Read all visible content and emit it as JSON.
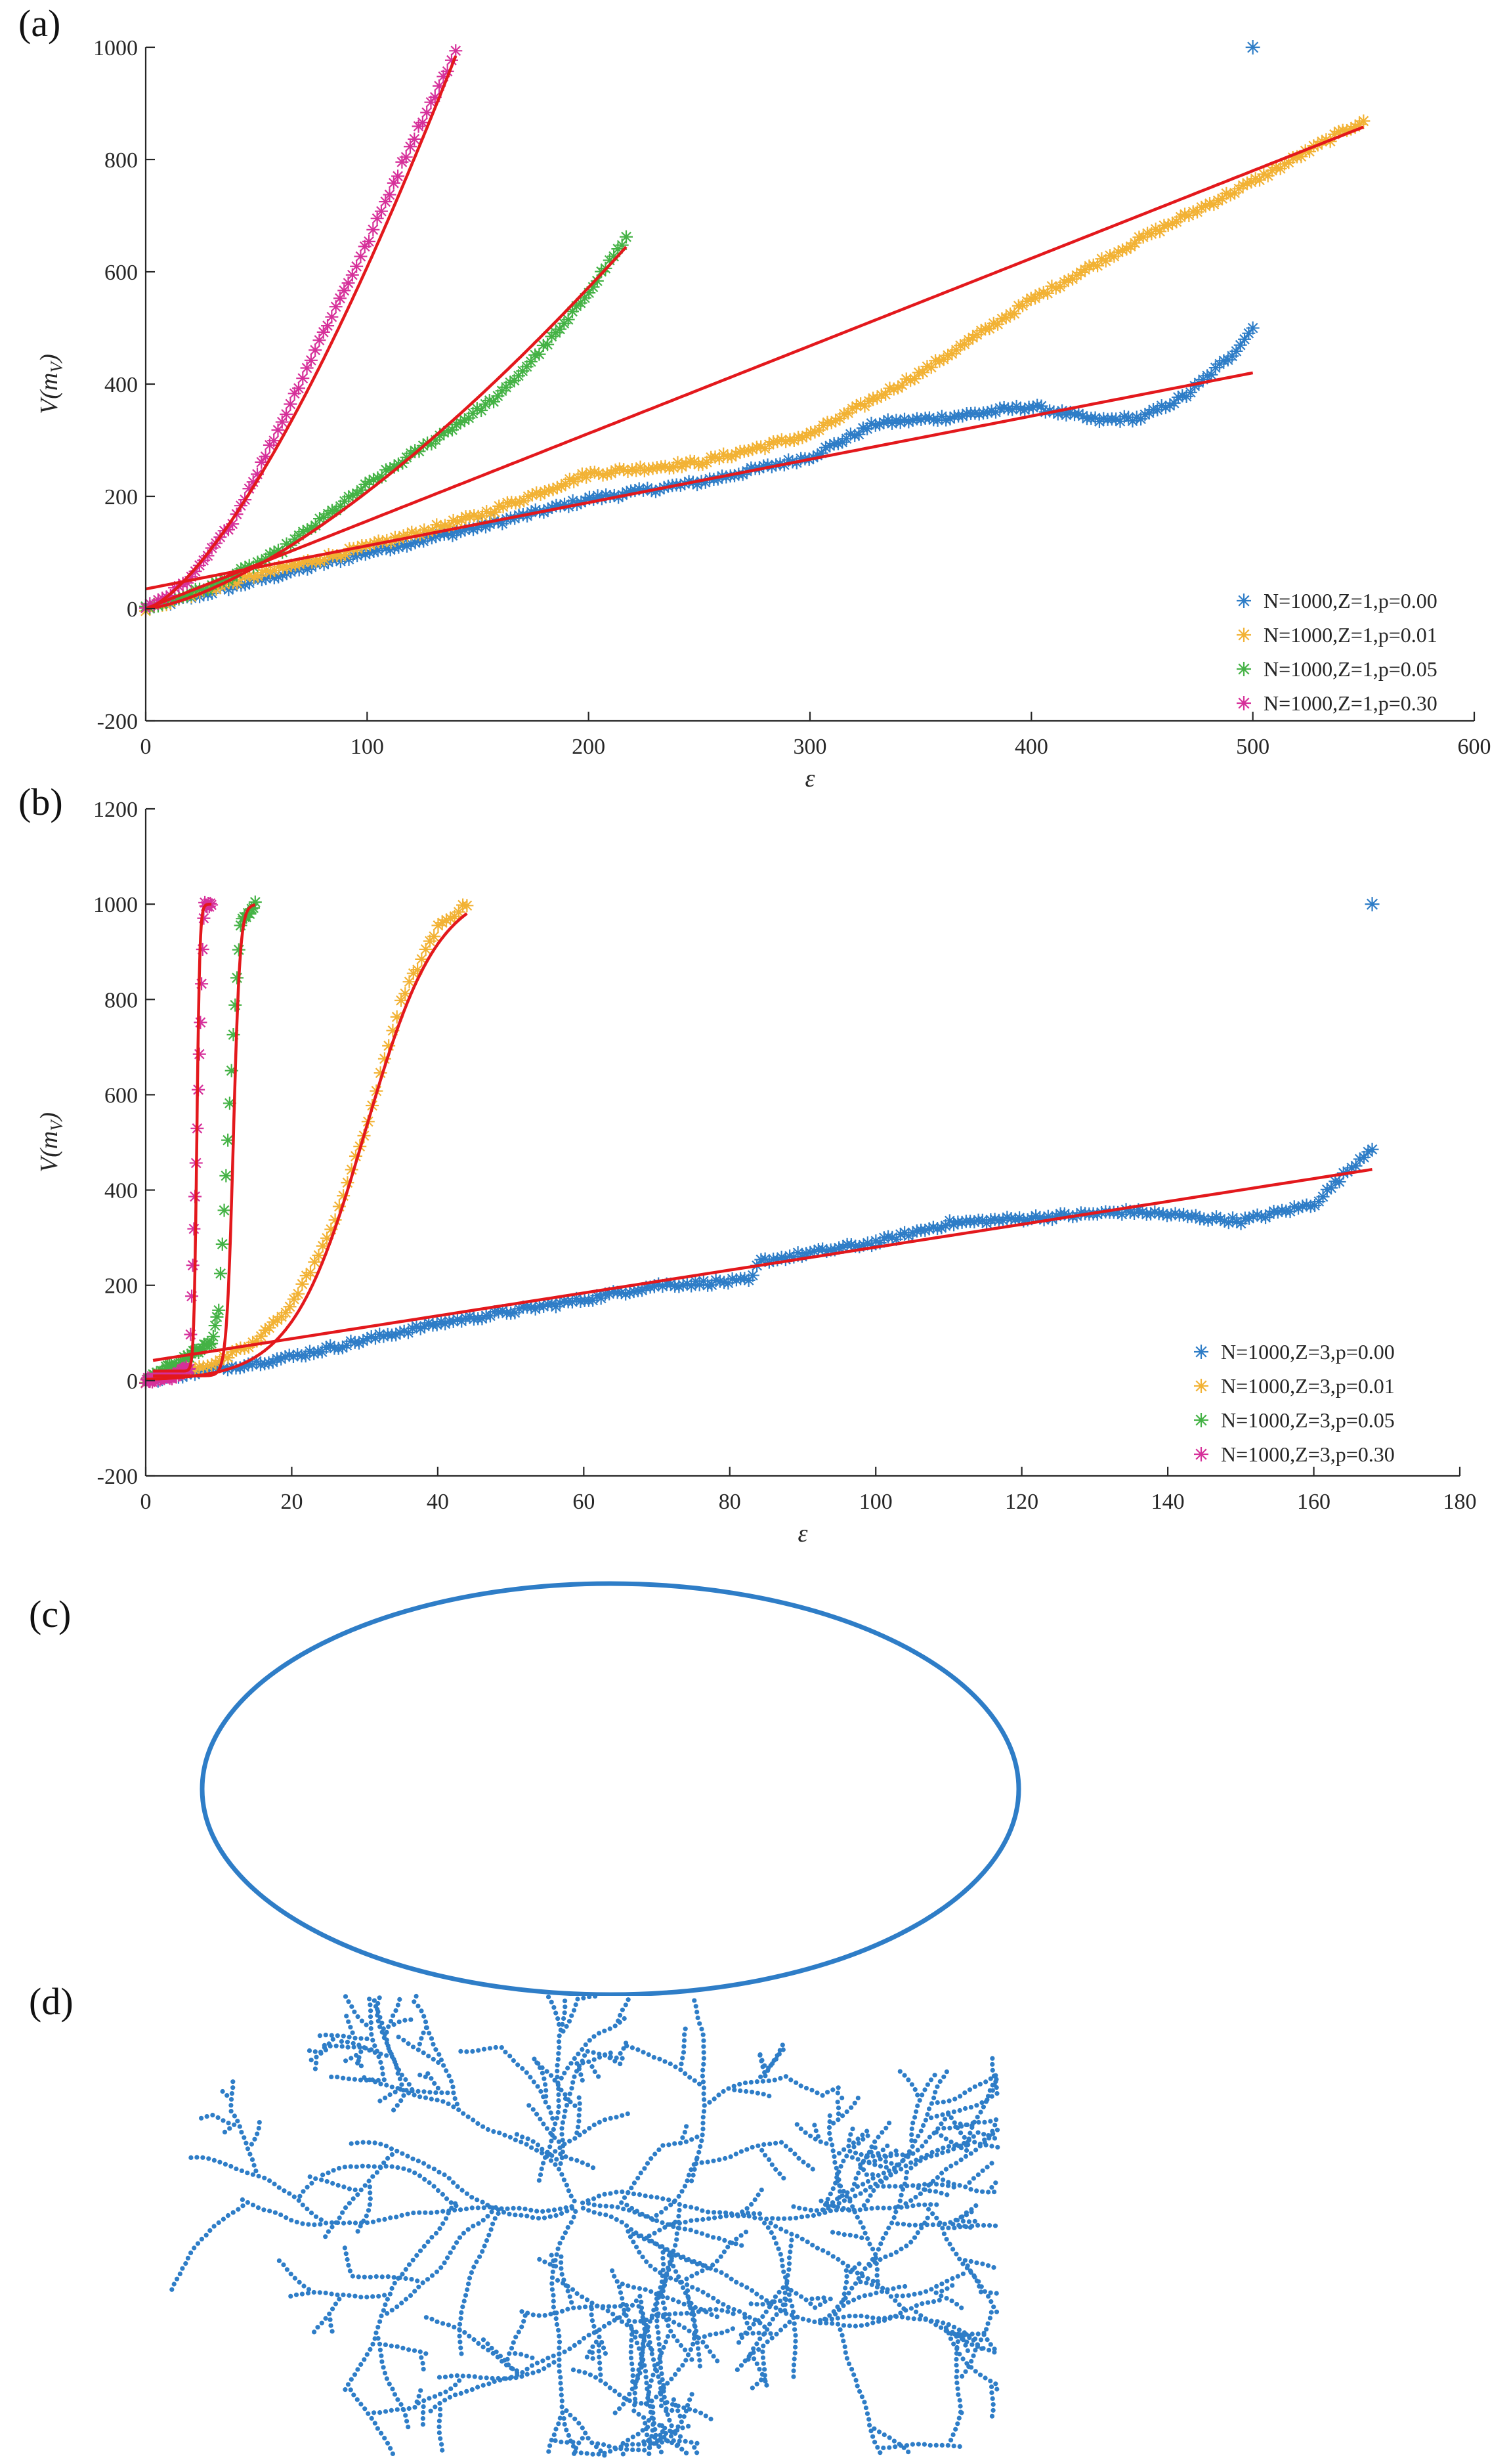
{
  "figure": {
    "panel_labels": [
      "(a)",
      "(b)",
      "(c)",
      "(d)"
    ]
  },
  "chart_data": [
    {
      "id": "a",
      "type": "scatter",
      "title": "",
      "xlabel": "ε",
      "ylabel": "V(m_V)",
      "xlim": [
        0,
        600
      ],
      "ylim": [
        -200,
        1000
      ],
      "xticks": [
        0,
        100,
        200,
        300,
        400,
        500,
        600
      ],
      "yticks": [
        -200,
        0,
        200,
        400,
        600,
        800,
        1000
      ],
      "legend_position": "bottom-right",
      "grid": false,
      "series": [
        {
          "name": "N=1000,Z=1,p=0.00",
          "color": "#2E7DC7",
          "points": [
            [
              0,
              0
            ],
            [
              20,
              20
            ],
            [
              50,
              50
            ],
            [
              100,
              100
            ],
            [
              150,
              145
            ],
            [
              200,
              195
            ],
            [
              250,
              225
            ],
            [
              300,
              270
            ],
            [
              330,
              330
            ],
            [
              360,
              340
            ],
            [
              400,
              360
            ],
            [
              430,
              335
            ],
            [
              450,
              340
            ],
            [
              470,
              380
            ],
            [
              490,
              450
            ],
            [
              500,
              500
            ],
            [
              500,
              1000
            ]
          ],
          "fit": {
            "kind": "linear",
            "slope": 0.77,
            "intercept": 35,
            "x_range": [
              0,
              500
            ]
          }
        },
        {
          "name": "N=1000,Z=1,p=0.01",
          "color": "#F2B234",
          "points": [
            [
              0,
              0
            ],
            [
              50,
              60
            ],
            [
              100,
              110
            ],
            [
              150,
              165
            ],
            [
              200,
              240
            ],
            [
              250,
              260
            ],
            [
              300,
              310
            ],
            [
              350,
              420
            ],
            [
              400,
              550
            ],
            [
              450,
              660
            ],
            [
              500,
              760
            ],
            [
              550,
              870
            ]
          ],
          "fit": {
            "kind": "linear",
            "slope": 1.56,
            "intercept": 0,
            "x_range": [
              0,
              550
            ]
          }
        },
        {
          "name": "N=1000,Z=1,p=0.05",
          "color": "#44B245",
          "points": [
            [
              0,
              0
            ],
            [
              30,
              40
            ],
            [
              60,
              100
            ],
            [
              100,
              220
            ],
            [
              130,
              300
            ],
            [
              160,
              380
            ],
            [
              190,
              510
            ],
            [
              217,
              660
            ]
          ],
          "fit": {
            "kind": "power",
            "a": 0.25,
            "b": 1.46,
            "x_range": [
              0,
              217
            ]
          }
        },
        {
          "name": "N=1000,Z=1,p=0.30",
          "color": "#D6309A",
          "points": [
            [
              0,
              0
            ],
            [
              20,
              50
            ],
            [
              40,
              160
            ],
            [
              60,
              320
            ],
            [
              80,
              490
            ],
            [
              100,
              650
            ],
            [
              120,
              830
            ],
            [
              140,
              990
            ]
          ],
          "fit": {
            "kind": "power",
            "a": 0.84,
            "b": 1.43,
            "x_range": [
              0,
              140
            ]
          }
        }
      ]
    },
    {
      "id": "b",
      "type": "scatter",
      "title": "",
      "xlabel": "ε",
      "ylabel": "V(m_V)",
      "xlim": [
        0,
        180
      ],
      "ylim": [
        -200,
        1200
      ],
      "xticks": [
        0,
        20,
        40,
        60,
        80,
        100,
        120,
        140,
        160,
        180
      ],
      "yticks": [
        -200,
        0,
        200,
        400,
        600,
        800,
        1000,
        1200
      ],
      "legend_position": "bottom-right",
      "grid": false,
      "series": [
        {
          "name": "N=1000,Z=3,p=0.00",
          "color": "#2E7DC7",
          "points": [
            [
              0,
              0
            ],
            [
              20,
              50
            ],
            [
              40,
              120
            ],
            [
              60,
              170
            ],
            [
              70,
              200
            ],
            [
              83,
              210
            ],
            [
              84,
              250
            ],
            [
              100,
              290
            ],
            [
              110,
              330
            ],
            [
              120,
              340
            ],
            [
              135,
              355
            ],
            [
              150,
              335
            ],
            [
              160,
              370
            ],
            [
              168,
              490
            ],
            [
              168,
              1000
            ]
          ],
          "fit": {
            "kind": "linear",
            "slope": 2.4,
            "intercept": 40,
            "x_range": [
              1,
              168
            ]
          }
        },
        {
          "name": "N=1000,Z=3,p=0.01",
          "color": "#F2B234",
          "points": [
            [
              0,
              0
            ],
            [
              10,
              40
            ],
            [
              15,
              80
            ],
            [
              20,
              160
            ],
            [
              25,
              300
            ],
            [
              30,
              520
            ],
            [
              35,
              800
            ],
            [
              40,
              950
            ],
            [
              44,
              1000
            ]
          ],
          "fit": {
            "kind": "sigmoid",
            "base": 0,
            "top": 1040,
            "x0": 30,
            "k": 0.2,
            "x_range": [
              0,
              44
            ]
          }
        },
        {
          "name": "N=1000,Z=3,p=0.05",
          "color": "#44B245",
          "points": [
            [
              0,
              0
            ],
            [
              9,
              80
            ],
            [
              10,
              150
            ],
            [
              11,
              430
            ],
            [
              12,
              730
            ],
            [
              13,
              960
            ],
            [
              15,
              1000
            ]
          ],
          "fit": {
            "kind": "sigmoid",
            "base": 10,
            "top": 1000,
            "x0": 12,
            "k": 2.2,
            "x_range": [
              1,
              15
            ]
          }
        },
        {
          "name": "N=1000,Z=3,p=0.30",
          "color": "#D6309A",
          "points": [
            [
              0,
              0
            ],
            [
              4,
              10
            ],
            [
              6,
              30
            ],
            [
              7,
              510
            ],
            [
              8,
              1000
            ],
            [
              9,
              1000
            ]
          ],
          "fit": {
            "kind": "sigmoid",
            "base": 20,
            "top": 1000,
            "x0": 7,
            "k": 5,
            "x_range": [
              1,
              9
            ]
          }
        }
      ]
    }
  ]
}
